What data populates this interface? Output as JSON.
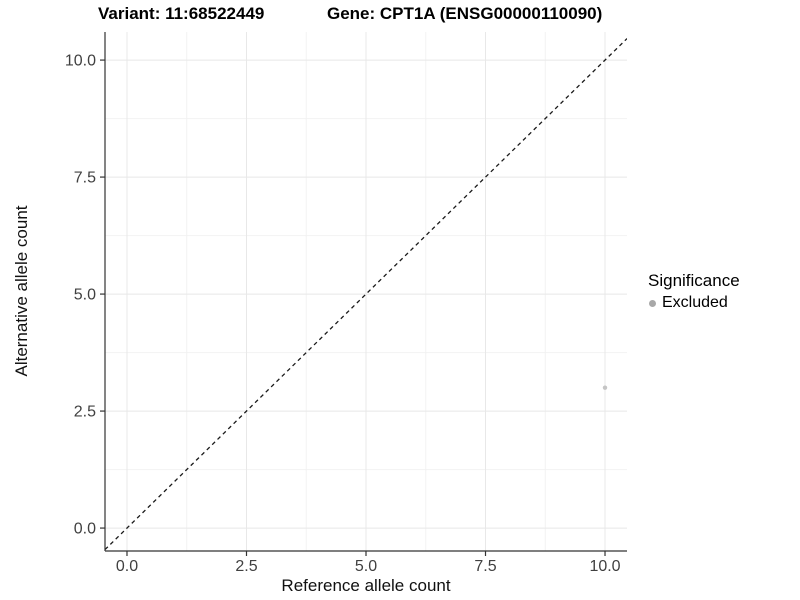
{
  "figure": {
    "title_left": "Variant: 11:68522449",
    "title_right": "Gene: CPT1A (ENSG00000110090)"
  },
  "axes": {
    "x_label": "Reference allele count",
    "y_label": "Alternative allele count"
  },
  "legend": {
    "title": "Significance",
    "position": "right",
    "items": [
      {
        "label": "Excluded",
        "color": "#a8a8a8",
        "marker": "circle"
      }
    ]
  },
  "chart_data": {
    "type": "scatter",
    "title": "Variant: 11:68522449   Gene: CPT1A (ENSG00000110090)",
    "xlabel": "Reference allele count",
    "ylabel": "Alternative allele count",
    "xlim": [
      -0.46,
      10.46
    ],
    "ylim": [
      -0.49,
      10.6
    ],
    "xticks": [
      0.0,
      2.5,
      5.0,
      7.5,
      10.0
    ],
    "yticks": [
      0.0,
      2.5,
      5.0,
      7.5,
      10.0
    ],
    "xtick_labels": [
      "0.0",
      "2.5",
      "5.0",
      "7.5",
      "10.0"
    ],
    "ytick_labels": [
      "0.0",
      "2.5",
      "5.0",
      "7.5",
      "10.0"
    ],
    "minor_xticks": [
      1.25,
      3.75,
      6.25,
      8.75
    ],
    "minor_yticks": [
      1.25,
      3.75,
      6.25,
      8.75
    ],
    "grid": true,
    "legend_position": "right",
    "series": [
      {
        "name": "Excluded",
        "points": [
          {
            "x": 10,
            "y": 3
          }
        ],
        "color": "#c5c5c5",
        "marker_radius": 2.2
      }
    ],
    "identity_line": {
      "slope": 1,
      "intercept": 0,
      "style": "dashed",
      "color": "#1a1a1a"
    },
    "style_colors": {
      "axis_line": "#333333",
      "tick_mark": "#333333",
      "tick_label": "#404040",
      "major_grid": "#e8e8e8",
      "minor_grid": "#f2f2f2",
      "background": "#ffffff"
    }
  }
}
